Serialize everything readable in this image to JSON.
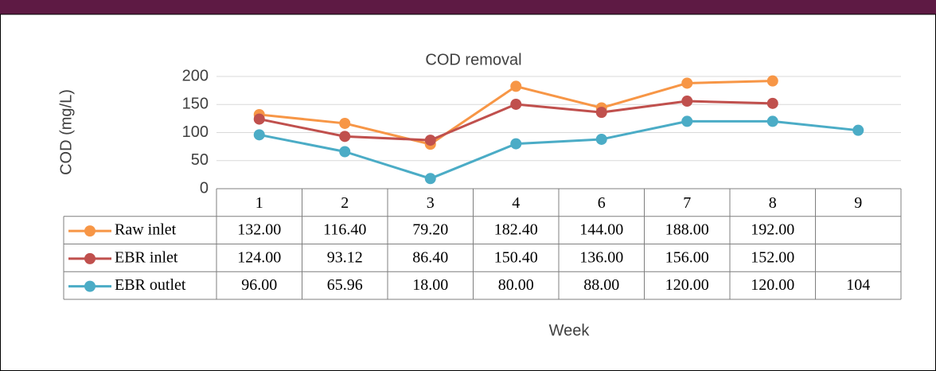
{
  "chart_data": {
    "type": "line",
    "title": "COD removal",
    "x_label": "Week",
    "y_label": "COD (mg/L)",
    "categories": [
      "1",
      "2",
      "3",
      "4",
      "6",
      "7",
      "8",
      "9"
    ],
    "ylim": [
      0,
      200
    ],
    "yticks": [
      0,
      50,
      100,
      150,
      200
    ],
    "grid": true,
    "series": [
      {
        "name": "Raw inlet",
        "color": "#f79646",
        "values": [
          132,
          116.4,
          79.2,
          182.4,
          144,
          188,
          192,
          null
        ],
        "value_labels": [
          "132.00",
          "116.40",
          "79.20",
          "182.40",
          "144.00",
          "188.00",
          "192.00",
          null
        ]
      },
      {
        "name": "EBR inlet",
        "color": "#c0504d",
        "values": [
          124,
          93.12,
          86.4,
          150.4,
          136,
          156,
          152,
          null
        ],
        "value_labels": [
          "124.00",
          "93.12",
          "86.40",
          "150.40",
          "136.00",
          "156.00",
          "152.00",
          null
        ]
      },
      {
        "name": "EBR outlet",
        "color": "#4bacc6",
        "values": [
          96,
          65.96,
          18,
          80,
          88,
          120,
          120,
          104
        ],
        "value_labels": [
          "96.00",
          "65.96",
          "18.00",
          "80.00",
          "88.00",
          "120.00",
          "120.00",
          "104"
        ]
      }
    ]
  }
}
